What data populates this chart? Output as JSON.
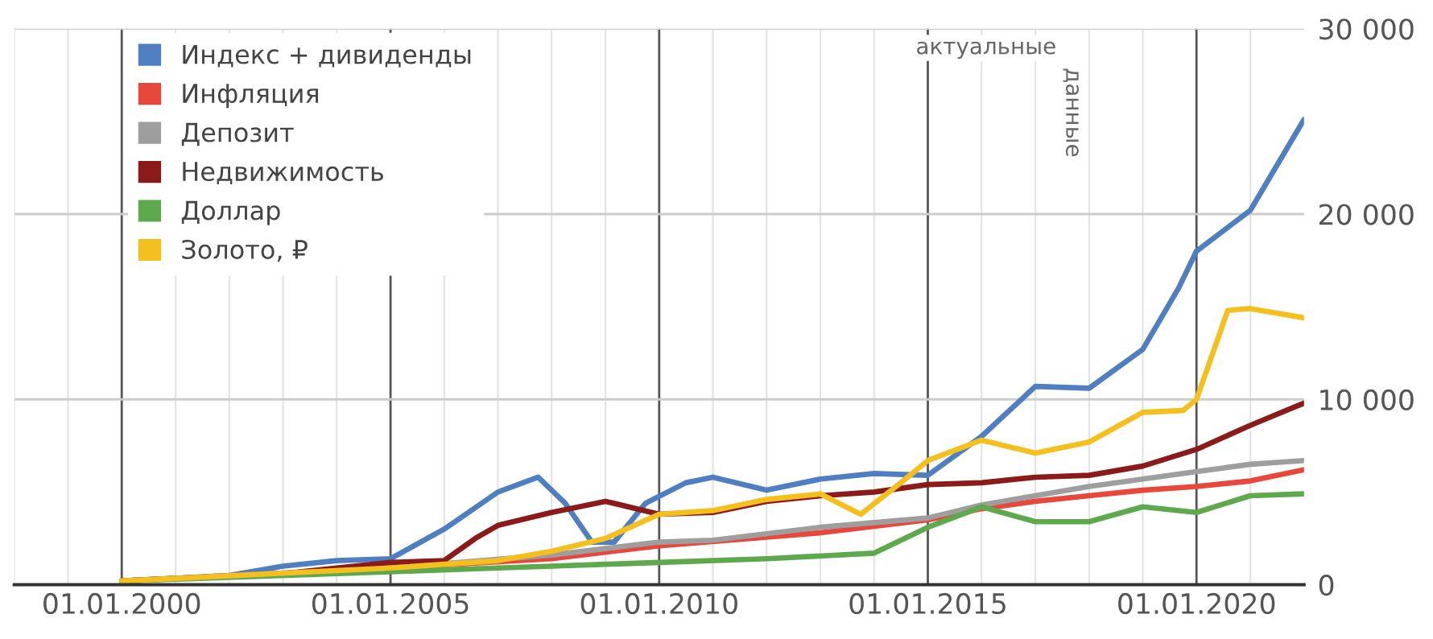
{
  "chart_data": {
    "type": "line",
    "x": [
      "2000-01-01",
      "2002-01-01",
      "2003-01-01",
      "2004-01-01",
      "2005-01-01",
      "2006-01-01",
      "2007-01-01",
      "2007-10-01",
      "2008-04-01",
      "2008-10-01",
      "2009-03-01",
      "2009-10-01",
      "2010-07-01",
      "2011-01-01",
      "2012-01-01",
      "2013-01-01",
      "2014-01-01",
      "2015-01-01",
      "2016-01-01",
      "2017-01-01",
      "2018-01-01",
      "2019-01-01",
      "2019-09-01",
      "2020-01-01",
      "2021-01-01",
      "2022-01-01"
    ],
    "series": [
      {
        "name": "Индекс + дивиденды",
        "color": "#4f7fc0",
        "values": [
          200,
          500,
          1000,
          1300,
          1400,
          3000,
          5000,
          5800,
          4400,
          2300,
          2300,
          4400,
          5500,
          5800,
          5100,
          5700,
          6000,
          5900,
          8000,
          10700,
          10600,
          12700,
          16000,
          18000,
          20200,
          25100
        ]
      },
      {
        "name": "Инфляция",
        "color": "#e8473c",
        "x": [
          "2000-01-01",
          "2005-01-01",
          "2008-01-01",
          "2010-01-01",
          "2013-01-01",
          "2015-01-01",
          "2016-01-01",
          "2017-01-01",
          "2018-01-01",
          "2019-01-01",
          "2020-01-01",
          "2021-01-01",
          "2022-01-01"
        ],
        "values": [
          200,
          900,
          1400,
          2100,
          2800,
          3500,
          4100,
          4500,
          4800,
          5100,
          5300,
          5600,
          6200
        ]
      },
      {
        "name": "Депозит",
        "color": "#9e9e9e",
        "x": [
          "2000-01-01",
          "2005-01-01",
          "2008-01-01",
          "2010-01-01",
          "2011-01-01",
          "2013-01-01",
          "2015-01-01",
          "2016-01-01",
          "2017-01-01",
          "2018-01-01",
          "2019-01-01",
          "2020-01-01",
          "2021-01-01",
          "2022-01-01"
        ],
        "values": [
          200,
          900,
          1600,
          2300,
          2400,
          3100,
          3600,
          4300,
          4800,
          5300,
          5700,
          6100,
          6500,
          6700
        ]
      },
      {
        "name": "Недвижимость",
        "color": "#8b1a1a",
        "x": [
          "2000-01-01",
          "2003-01-01",
          "2005-01-01",
          "2006-01-01",
          "2006-08-01",
          "2007-01-01",
          "2008-01-01",
          "2009-01-01",
          "2010-01-01",
          "2011-01-01",
          "2012-01-01",
          "2013-01-01",
          "2014-01-01",
          "2015-01-01",
          "2016-01-01",
          "2017-01-01",
          "2018-01-01",
          "2019-01-01",
          "2020-01-01",
          "2021-01-01",
          "2022-01-01"
        ],
        "values": [
          200,
          600,
          1200,
          1300,
          2500,
          3200,
          3900,
          4500,
          3800,
          3900,
          4500,
          4800,
          5000,
          5400,
          5500,
          5800,
          5900,
          6400,
          7300,
          8600,
          9800
        ]
      },
      {
        "name": "Доллар",
        "color": "#5ea84d",
        "x": [
          "2000-01-01",
          "2005-01-01",
          "2007-01-01",
          "2008-01-01",
          "2009-01-01",
          "2010-01-01",
          "2012-01-01",
          "2014-01-01",
          "2015-01-01",
          "2016-01-01",
          "2017-01-01",
          "2018-01-01",
          "2019-01-01",
          "2020-01-01",
          "2021-01-01",
          "2022-01-01"
        ],
        "values": [
          200,
          700,
          900,
          1000,
          1100,
          1200,
          1400,
          1700,
          3100,
          4200,
          3400,
          3400,
          4200,
          3900,
          4800,
          4900
        ]
      },
      {
        "name": "Золото, ₽",
        "color": "#f4c020",
        "x": [
          "2000-01-01",
          "2005-01-01",
          "2007-01-01",
          "2008-01-01",
          "2009-01-01",
          "2010-01-01",
          "2011-01-01",
          "2012-01-01",
          "2013-01-01",
          "2013-10-01",
          "2014-07-01",
          "2015-01-01",
          "2016-01-01",
          "2017-01-01",
          "2018-01-01",
          "2019-01-01",
          "2019-10-01",
          "2020-01-01",
          "2020-08-01",
          "2021-01-01",
          "2022-01-01"
        ],
        "values": [
          200,
          900,
          1300,
          1800,
          2500,
          3800,
          4000,
          4600,
          4900,
          3800,
          5500,
          6700,
          7800,
          7100,
          7700,
          9300,
          9400,
          10000,
          14800,
          14900,
          14400
        ]
      }
    ],
    "xlim": [
      "1998-01-01",
      "2022-01-01"
    ],
    "xticks": [
      {
        "value": "1998-01-01",
        "label": null
      },
      {
        "value": "1999-01-01",
        "label": null
      },
      {
        "value": "2000-01-01",
        "label": "01.01.2000"
      },
      {
        "value": "2001-01-01",
        "label": null
      },
      {
        "value": "2002-01-01",
        "label": null
      },
      {
        "value": "2003-01-01",
        "label": null
      },
      {
        "value": "2004-01-01",
        "label": null
      },
      {
        "value": "2005-01-01",
        "label": "01.01.2005"
      },
      {
        "value": "2006-01-01",
        "label": null
      },
      {
        "value": "2007-01-01",
        "label": null
      },
      {
        "value": "2008-01-01",
        "label": null
      },
      {
        "value": "2009-01-01",
        "label": null
      },
      {
        "value": "2010-01-01",
        "label": "01.01.2010"
      },
      {
        "value": "2011-01-01",
        "label": null
      },
      {
        "value": "2012-01-01",
        "label": null
      },
      {
        "value": "2013-01-01",
        "label": null
      },
      {
        "value": "2014-01-01",
        "label": null
      },
      {
        "value": "2015-01-01",
        "label": "01.01.2015"
      },
      {
        "value": "2016-01-01",
        "label": null
      },
      {
        "value": "2017-01-01",
        "label": null
      },
      {
        "value": "2018-01-01",
        "label": null
      },
      {
        "value": "2019-01-01",
        "label": null
      },
      {
        "value": "2020-01-01",
        "label": "01.01.2020"
      },
      {
        "value": "2021-01-01",
        "label": null
      }
    ],
    "ylim": [
      0,
      30000
    ],
    "yticks": [
      0,
      {
        "value": 10000,
        "label": "10 000"
      },
      {
        "value": 20000,
        "label": "20 000"
      },
      {
        "value": 30000,
        "label": "30 000"
      }
    ],
    "grid": true,
    "legend": "top left",
    "line_style": "solid",
    "marker": "none",
    "annotations": [
      "актуальные",
      "данные"
    ]
  }
}
